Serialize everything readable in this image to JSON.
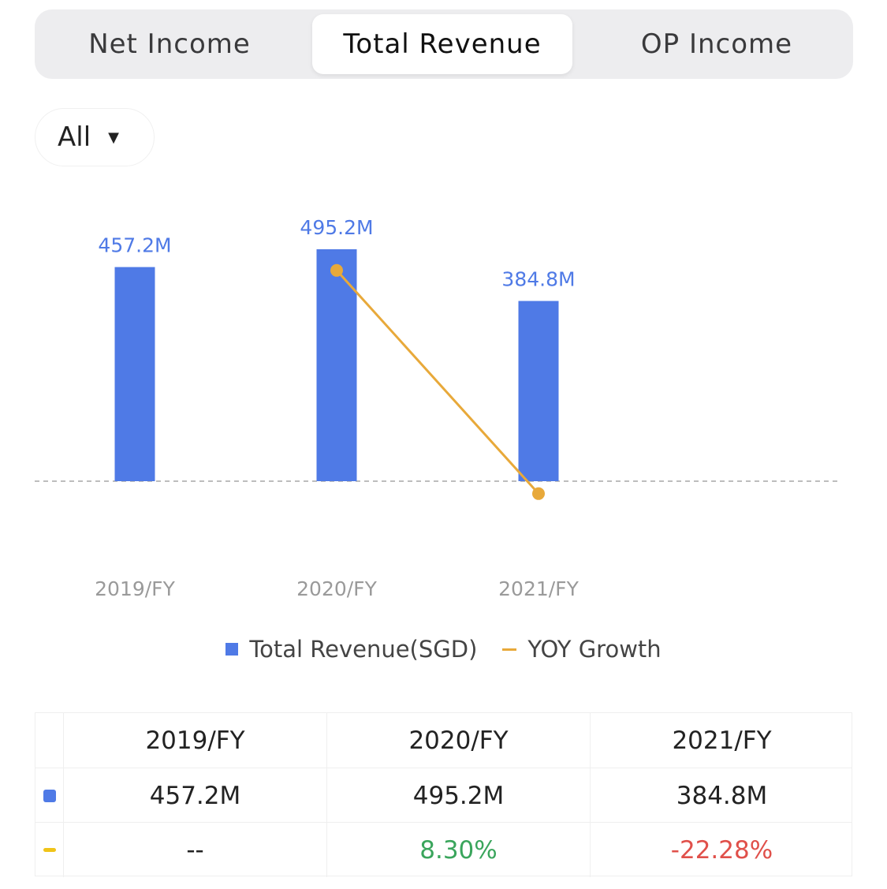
{
  "tabs": [
    {
      "label": "Net Income",
      "active": false
    },
    {
      "label": "Total Revenue",
      "active": true
    },
    {
      "label": "OP Income",
      "active": false
    }
  ],
  "filter": {
    "label": "All"
  },
  "chart_data": {
    "type": "bar",
    "categories": [
      "2019/FY",
      "2020/FY",
      "2021/FY"
    ],
    "series": [
      {
        "name": "Total Revenue(SGD)",
        "type": "bar",
        "values": [
          457.2,
          495.2,
          384.8
        ],
        "labels": [
          "457.2M",
          "495.2M",
          "384.8M"
        ],
        "color": "#4f7ae6"
      },
      {
        "name": "YOY Growth",
        "type": "line",
        "values": [
          null,
          8.3,
          -22.28
        ],
        "color": "#e8a93a"
      }
    ],
    "baseline": "dashed",
    "legend_position": "bottom"
  },
  "table": {
    "headers": [
      "2019/FY",
      "2020/FY",
      "2021/FY"
    ],
    "revenue": [
      "457.2M",
      "495.2M",
      "384.8M"
    ],
    "growth": [
      "--",
      "8.30%",
      "-22.28%"
    ],
    "colors": {
      "positive": "#3aa55c",
      "negative": "#e0504a"
    }
  }
}
